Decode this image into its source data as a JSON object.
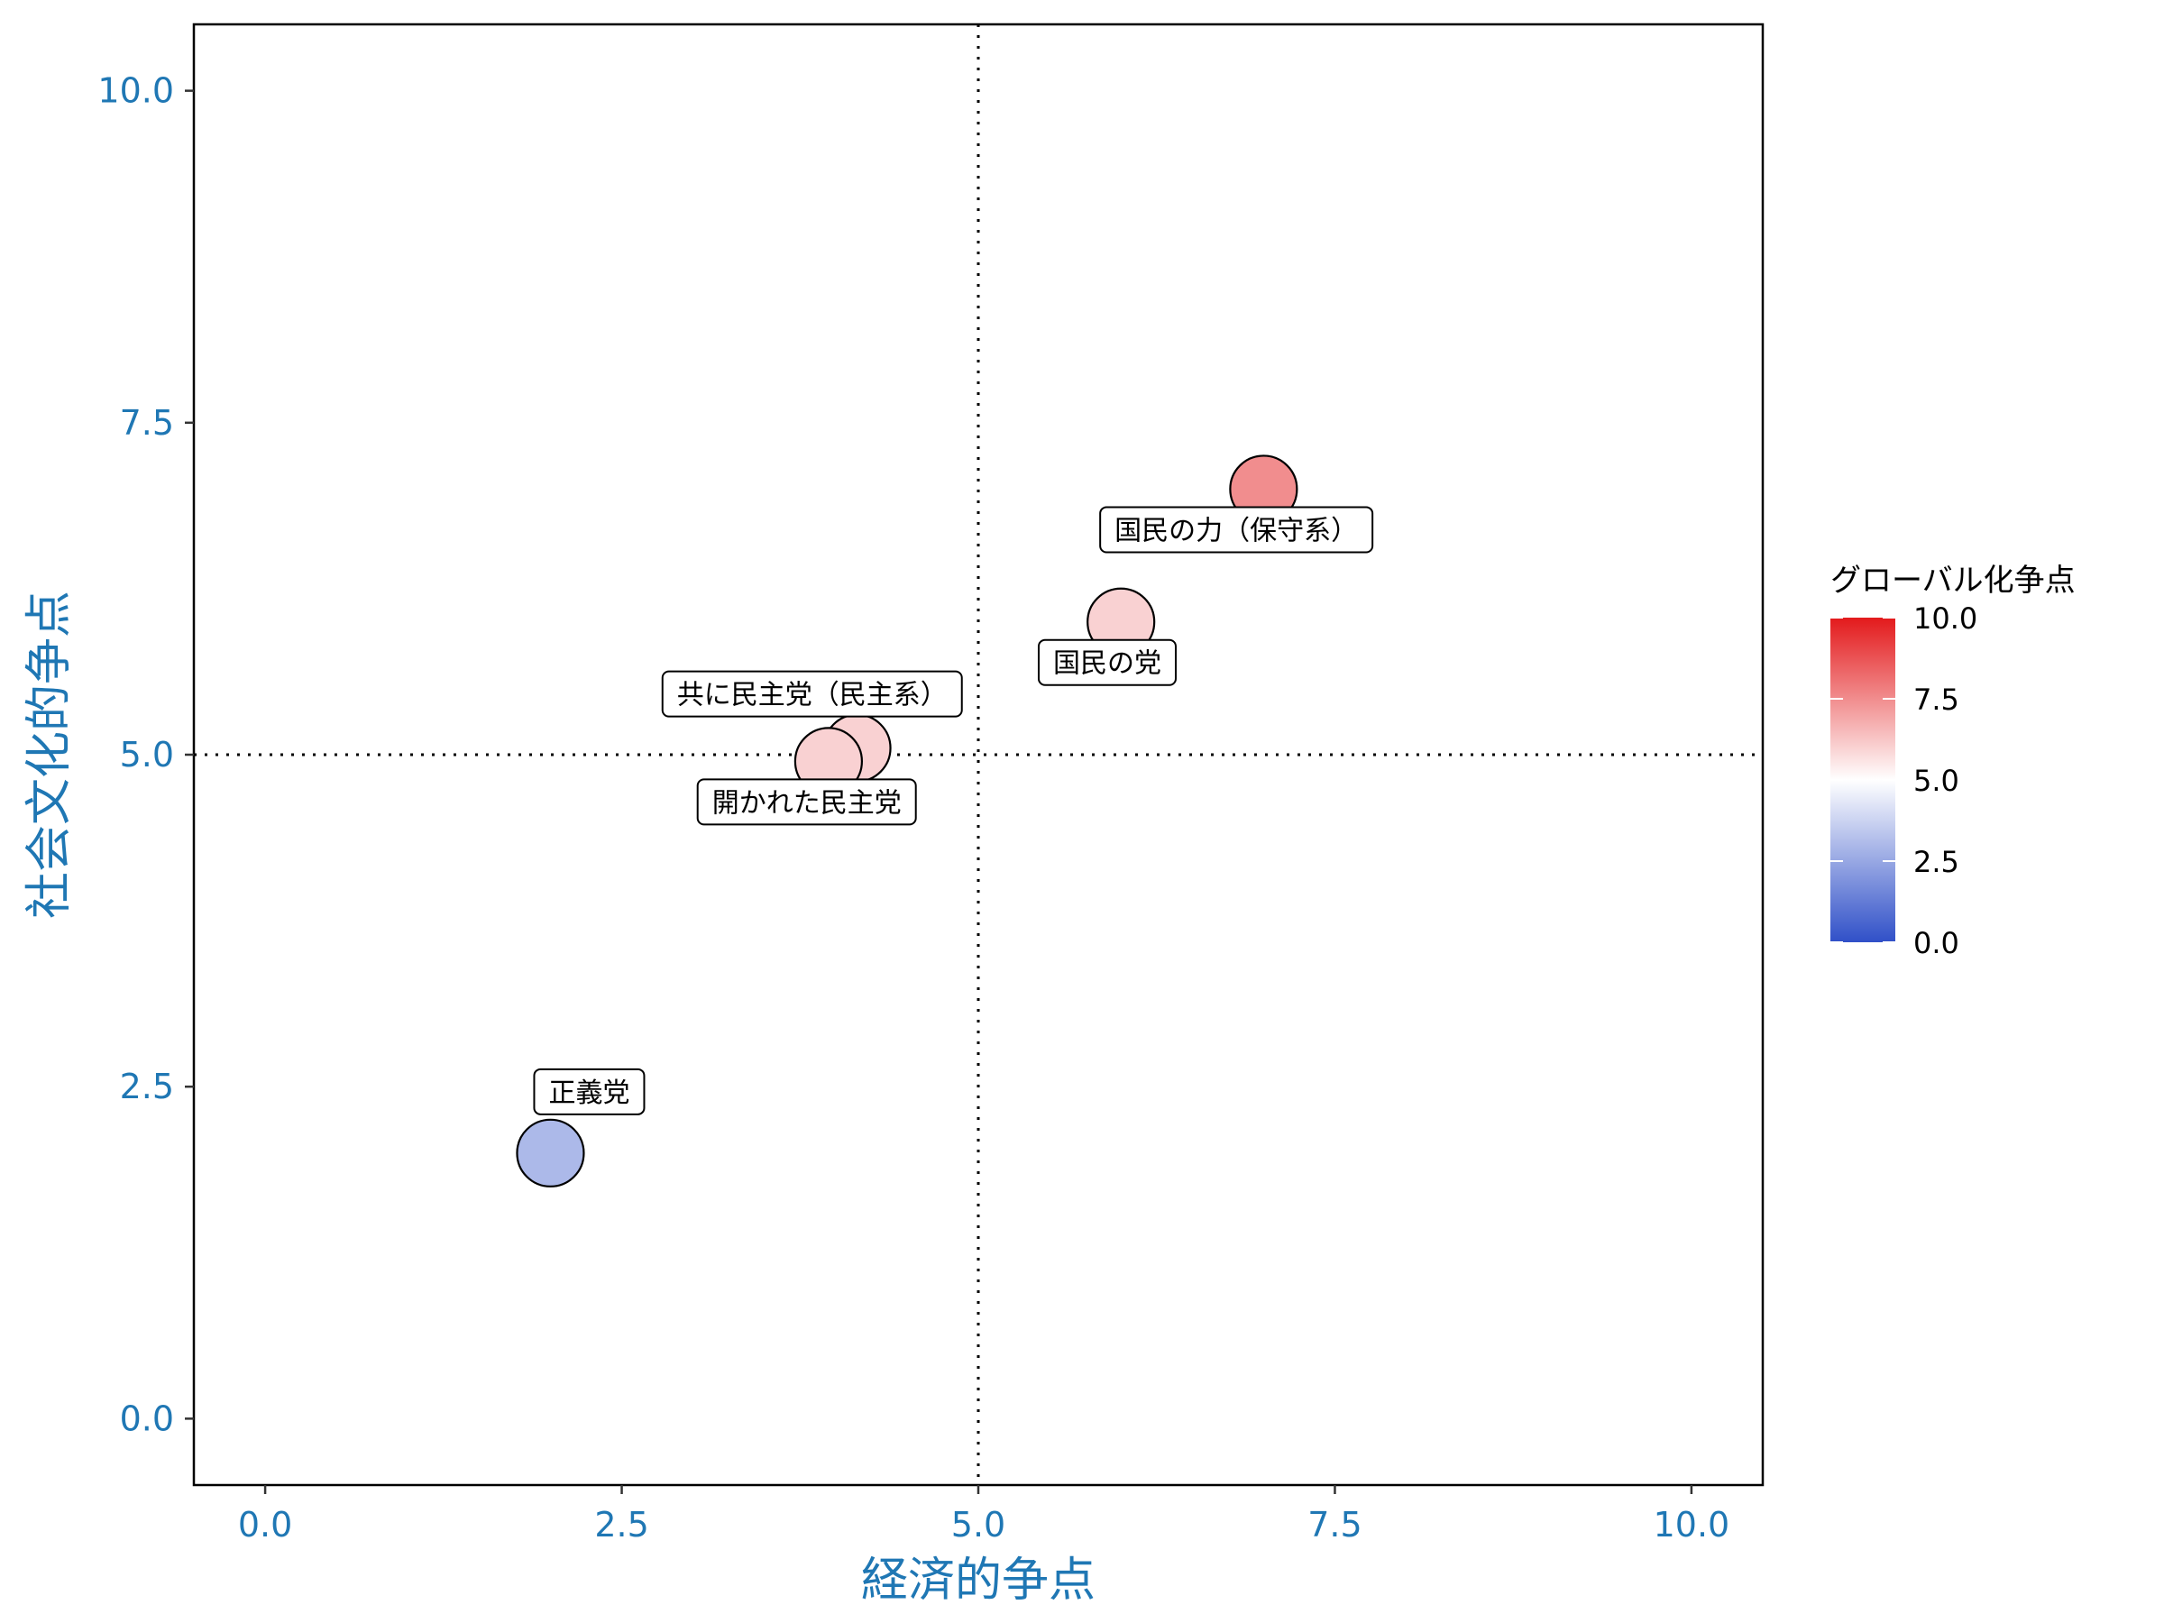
{
  "chart_data": {
    "type": "scatter",
    "xlabel": "経済的争点",
    "ylabel": "社会文化的争点",
    "xlim": [
      -0.5,
      10.5
    ],
    "ylim": [
      -0.5,
      10.5
    ],
    "xticks": [
      "0.0",
      "2.5",
      "5.0",
      "7.5",
      "10.0"
    ],
    "yticks": [
      "0.0",
      "2.5",
      "5.0",
      "7.5",
      "10.0"
    ],
    "reference_lines": {
      "x": 5.0,
      "y": 5.0,
      "style": "dotted"
    },
    "color_scale": {
      "title": "グローバル化争点",
      "range": [
        0,
        10
      ],
      "ticks": [
        "0.0",
        "2.5",
        "5.0",
        "7.5",
        "10.0"
      ],
      "low": "#3050c8",
      "mid": "#ffffff",
      "high": "#e31a1c"
    },
    "points": [
      {
        "label": "正義党",
        "x": 2.0,
        "y": 2.0,
        "color_value": 3.0,
        "label_pos": "above"
      },
      {
        "label": "共に民主党（民主系）",
        "x": 4.15,
        "y": 5.05,
        "color_value": 6.0,
        "label_pos": "above-left"
      },
      {
        "label": "開かれた民主党",
        "x": 3.95,
        "y": 4.95,
        "color_value": 6.0,
        "label_pos": "below-left"
      },
      {
        "label": "国民の党",
        "x": 6.0,
        "y": 6.0,
        "color_value": 6.0,
        "label_pos": "below-left"
      },
      {
        "label": "国民の力（保守系）",
        "x": 7.0,
        "y": 7.0,
        "color_value": 7.5,
        "label_pos": "below-left"
      }
    ],
    "legend_position": "right",
    "grid": false
  }
}
